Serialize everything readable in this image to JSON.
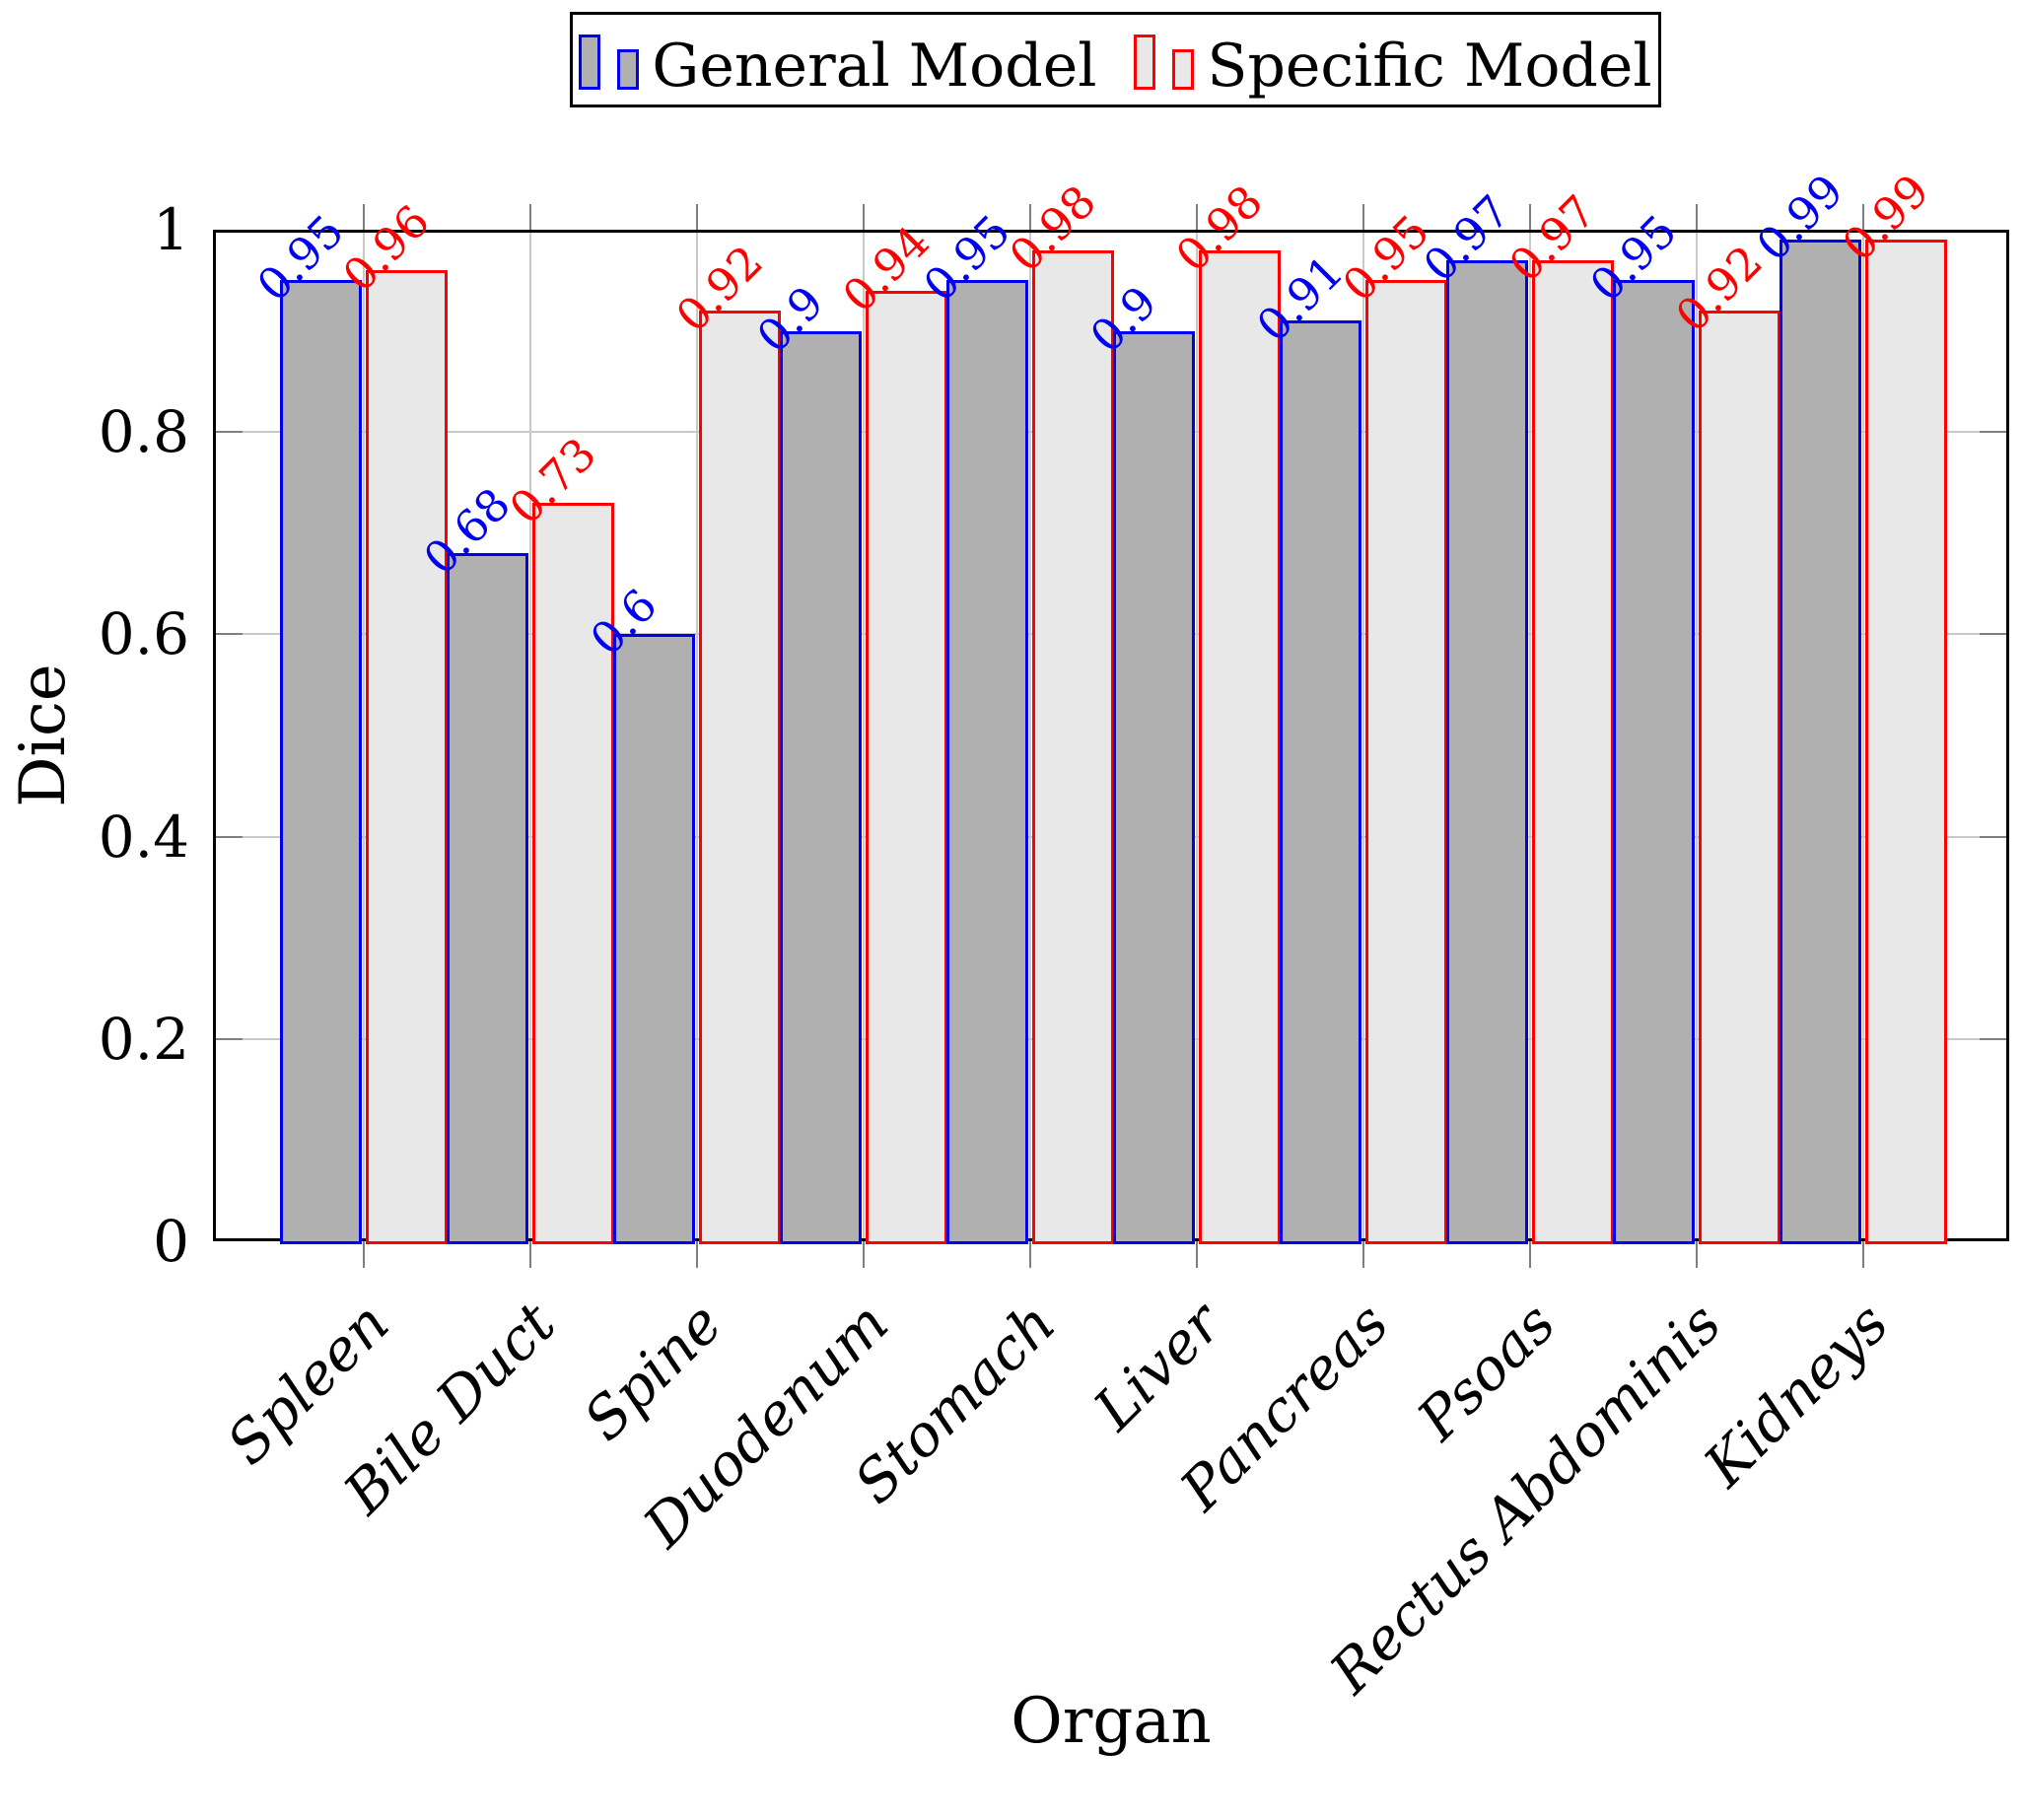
{
  "legend": {
    "border_color": "#000000",
    "entries": [
      {
        "label": "General Model",
        "swatch_fill": "#b0b0b0",
        "swatch_border": "#0000ee"
      },
      {
        "label": "Specific Model",
        "swatch_fill": "#e8e8e8",
        "swatch_border": "#ff0000"
      }
    ]
  },
  "axes": {
    "ylabel": "Dice",
    "xlabel": "Organ",
    "ytick_labels": [
      "0",
      "0.2",
      "0.4",
      "0.6",
      "0.8",
      "1"
    ]
  },
  "chart_data": {
    "type": "bar",
    "title": "",
    "xlabel": "Organ",
    "ylabel": "Dice",
    "ylim": [
      0,
      1
    ],
    "ytick_values": [
      0,
      0.2,
      0.4,
      0.6,
      0.8,
      1
    ],
    "grid": true,
    "legend_position": "top center",
    "bar_value_labels_rotated_45deg": true,
    "categories": [
      "Spleen",
      "Bile Duct",
      "Spine",
      "Duodenum",
      "Stomach",
      "Liver",
      "Pancreas",
      "Psoas",
      "Rectus Abdominis",
      "Kidneys"
    ],
    "series": [
      {
        "name": "General Model",
        "fill": "#b0b0b0",
        "border": "#0000ee",
        "values": [
          0.95,
          0.68,
          0.6,
          0.9,
          0.95,
          0.9,
          0.91,
          0.97,
          0.95,
          0.99
        ]
      },
      {
        "name": "Specific Model",
        "fill": "#e8e8e8",
        "border": "#ff0000",
        "values": [
          0.96,
          0.73,
          0.92,
          0.94,
          0.98,
          0.98,
          0.95,
          0.97,
          0.92,
          0.99
        ]
      }
    ]
  }
}
